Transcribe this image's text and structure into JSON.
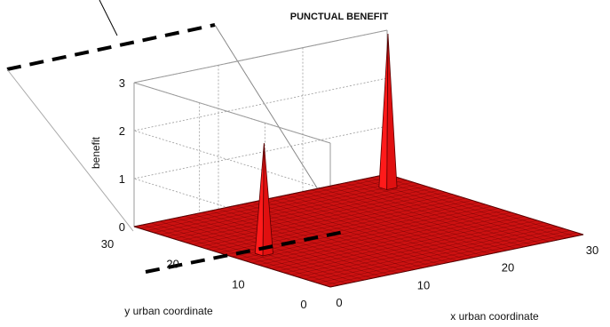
{
  "chart_data": {
    "type": "surface",
    "title": "PUNCTUAL BENEFIT",
    "xlabel": "x urban coordinate",
    "ylabel": "y urban coordinate",
    "zlabel": "benefit",
    "xlim": [
      0,
      30
    ],
    "ylim": [
      0,
      30
    ],
    "zlim": [
      0,
      3
    ],
    "x_ticks": [
      "0",
      "10",
      "20",
      "30"
    ],
    "y_ticks": [
      "0",
      "10",
      "20",
      "30"
    ],
    "z_ticks": [
      "0",
      "1",
      "2",
      "3"
    ],
    "grid": true,
    "baseline_value": 0,
    "peaks": [
      {
        "x": 3,
        "y": 14,
        "z": 2.3
      },
      {
        "x": 27,
        "y": 26,
        "z": 3.2
      }
    ],
    "colors": {
      "surface": "#cc1111",
      "surface_edge": "#5a0000",
      "peak": "#ff1a1a",
      "grid": "#9a9a9a"
    }
  }
}
